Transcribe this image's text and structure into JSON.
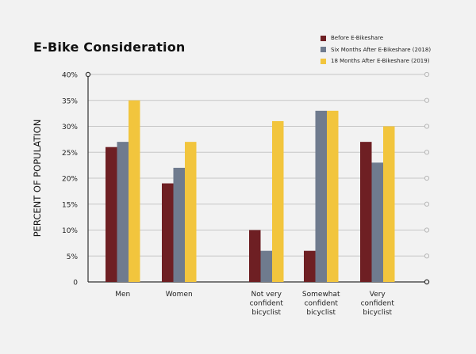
{
  "chart_data": {
    "type": "bar",
    "title": "E-Bike Consideration",
    "ylabel": "PERCENT OF POPULATION",
    "xlabel": "",
    "ylim": [
      0,
      40
    ],
    "yticks": [
      "0",
      "5%",
      "10%",
      "15%",
      "20%",
      "25%",
      "30%",
      "35%",
      "40%"
    ],
    "grid": true,
    "legend_position": "top-right",
    "categories": [
      [
        "Men"
      ],
      [
        "Women"
      ],
      [
        "Not very",
        "confident",
        "bicyclist"
      ],
      [
        "Somewhat",
        "confident",
        "bicyclist"
      ],
      [
        "Very",
        "confident",
        "bicyclist"
      ]
    ],
    "series": [
      {
        "name": "Before E-Bikeshare",
        "color": "#6e1f23",
        "values": [
          26,
          19,
          10,
          6,
          27
        ]
      },
      {
        "name": "Six Months After E-Bikeshare (2018)",
        "color": "#6f7b8e",
        "values": [
          27,
          22,
          6,
          33,
          23
        ]
      },
      {
        "name": "18 Months After E-Bikeshare (2019)",
        "color": "#f2c53d",
        "values": [
          35,
          27,
          31,
          33,
          30
        ]
      }
    ]
  }
}
